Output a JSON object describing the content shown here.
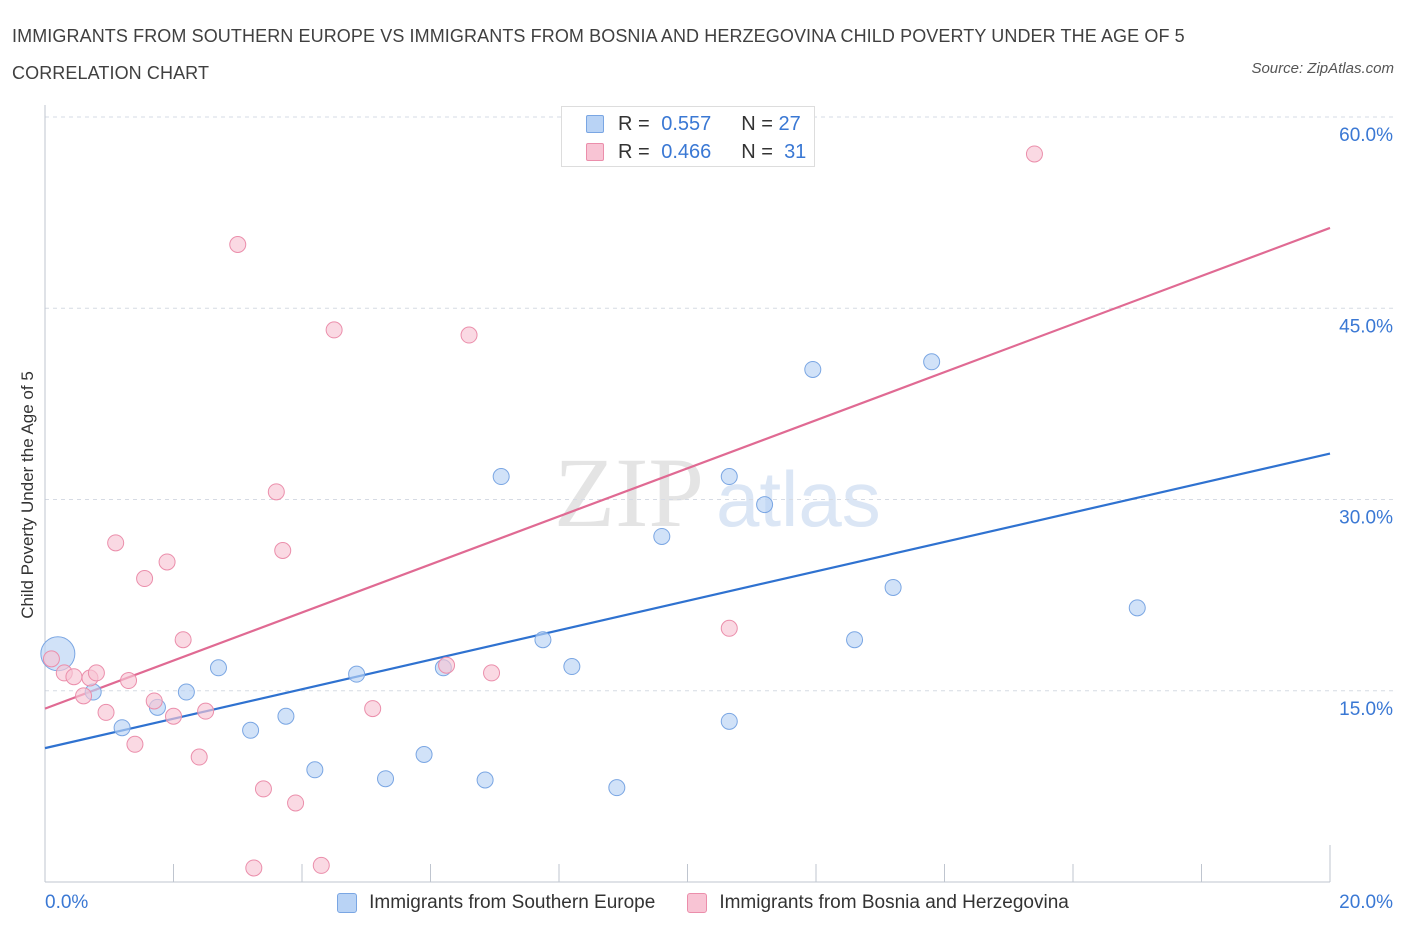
{
  "title": "IMMIGRANTS FROM SOUTHERN EUROPE VS IMMIGRANTS FROM BOSNIA AND HERZEGOVINA CHILD POVERTY UNDER THE AGE OF 5 CORRELATION CHART",
  "source": "Source: ZipAtlas.com",
  "watermark": {
    "zip": "ZIP",
    "atlas": "atlas"
  },
  "colors": {
    "blue_fill": "#b9d3f5",
    "blue_stroke": "#7aa6e3",
    "blue_line": "#2f72d0",
    "pink_fill": "#f8c4d4",
    "pink_stroke": "#eb8eab",
    "pink_line": "#e06a93",
    "tick_text": "#3a78d4",
    "grid": "#d6dbe4"
  },
  "legend": {
    "rows": [
      {
        "r_label": "R =",
        "r_value": "0.557",
        "n_label": "N =",
        "n_value": "27"
      },
      {
        "r_label": "R =",
        "r_value": "0.466",
        "n_label": "N =",
        "n_value": "31"
      }
    ]
  },
  "chart_data": {
    "type": "scatter",
    "title": "IMMIGRANTS FROM SOUTHERN EUROPE VS IMMIGRANTS FROM BOSNIA AND HERZEGOVINA CHILD POVERTY UNDER THE AGE OF 5 CORRELATION CHART",
    "xlabel": "",
    "ylabel": "Child Poverty Under the Age of 5",
    "xlim": [
      0,
      20
    ],
    "ylim": [
      0,
      60
    ],
    "x_tick_labels": [
      "0.0%",
      "20.0%"
    ],
    "y_ticks": [
      15,
      30,
      45,
      60
    ],
    "y_tick_labels": [
      "15.0%",
      "30.0%",
      "45.0%",
      "60.0%"
    ],
    "grid": true,
    "legend_position": "top-center",
    "series": [
      {
        "name": "Immigrants from Southern Europe",
        "R": 0.557,
        "N": 27,
        "trend": {
          "x": [
            0,
            20
          ],
          "y": [
            10.5,
            33.6
          ]
        },
        "points": [
          {
            "x": 0.2,
            "y": 17.9,
            "big": true
          },
          {
            "x": 0.75,
            "y": 14.9
          },
          {
            "x": 1.2,
            "y": 12.1
          },
          {
            "x": 1.75,
            "y": 13.7
          },
          {
            "x": 2.2,
            "y": 14.9
          },
          {
            "x": 2.7,
            "y": 16.8
          },
          {
            "x": 3.2,
            "y": 11.9
          },
          {
            "x": 3.75,
            "y": 13.0
          },
          {
            "x": 4.2,
            "y": 8.8
          },
          {
            "x": 4.85,
            "y": 16.3
          },
          {
            "x": 5.3,
            "y": 8.1
          },
          {
            "x": 5.9,
            "y": 10.0
          },
          {
            "x": 6.2,
            "y": 16.8
          },
          {
            "x": 6.85,
            "y": 8.0
          },
          {
            "x": 7.1,
            "y": 31.8
          },
          {
            "x": 7.75,
            "y": 19.0
          },
          {
            "x": 8.2,
            "y": 16.9
          },
          {
            "x": 8.9,
            "y": 7.4
          },
          {
            "x": 9.6,
            "y": 27.1
          },
          {
            "x": 10.65,
            "y": 12.6
          },
          {
            "x": 10.65,
            "y": 31.8
          },
          {
            "x": 11.2,
            "y": 29.6
          },
          {
            "x": 11.95,
            "y": 40.2
          },
          {
            "x": 12.6,
            "y": 19.0
          },
          {
            "x": 13.2,
            "y": 23.1
          },
          {
            "x": 13.8,
            "y": 40.8
          },
          {
            "x": 17.0,
            "y": 21.5
          }
        ]
      },
      {
        "name": "Immigrants from Bosnia and Herzegovina",
        "R": 0.466,
        "N": 31,
        "trend": {
          "x": [
            0,
            20
          ],
          "y": [
            13.6,
            51.3
          ]
        },
        "points": [
          {
            "x": 0.1,
            "y": 17.5
          },
          {
            "x": 0.3,
            "y": 16.4
          },
          {
            "x": 0.45,
            "y": 16.1
          },
          {
            "x": 0.6,
            "y": 14.6
          },
          {
            "x": 0.7,
            "y": 16.0
          },
          {
            "x": 0.8,
            "y": 16.4
          },
          {
            "x": 0.95,
            "y": 13.3
          },
          {
            "x": 1.1,
            "y": 26.6
          },
          {
            "x": 1.3,
            "y": 15.8
          },
          {
            "x": 1.4,
            "y": 10.8
          },
          {
            "x": 1.55,
            "y": 23.8
          },
          {
            "x": 1.7,
            "y": 14.2
          },
          {
            "x": 1.9,
            "y": 25.1
          },
          {
            "x": 2.0,
            "y": 13.0
          },
          {
            "x": 2.15,
            "y": 19.0
          },
          {
            "x": 2.4,
            "y": 9.8
          },
          {
            "x": 2.5,
            "y": 13.4
          },
          {
            "x": 3.0,
            "y": 50.0
          },
          {
            "x": 3.25,
            "y": 1.1
          },
          {
            "x": 3.4,
            "y": 7.3
          },
          {
            "x": 3.6,
            "y": 30.6
          },
          {
            "x": 3.7,
            "y": 26.0
          },
          {
            "x": 3.9,
            "y": 6.2
          },
          {
            "x": 4.3,
            "y": 1.3
          },
          {
            "x": 4.5,
            "y": 43.3
          },
          {
            "x": 5.1,
            "y": 13.6
          },
          {
            "x": 6.25,
            "y": 17.0
          },
          {
            "x": 6.6,
            "y": 42.9
          },
          {
            "x": 6.95,
            "y": 16.4
          },
          {
            "x": 10.65,
            "y": 19.9
          },
          {
            "x": 15.4,
            "y": 57.1
          }
        ]
      }
    ]
  }
}
